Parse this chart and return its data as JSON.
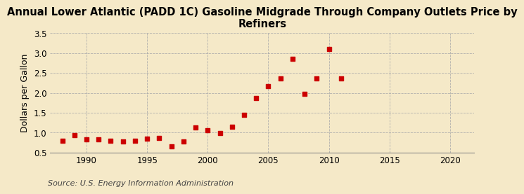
{
  "title": "Annual Lower Atlantic (PADD 1C) Gasoline Midgrade Through Company Outlets Price by\nRefiners",
  "ylabel": "Dollars per Gallon",
  "source": "Source: U.S. Energy Information Administration",
  "years": [
    1988,
    1989,
    1990,
    1991,
    1992,
    1993,
    1994,
    1995,
    1996,
    1997,
    1998,
    1999,
    2000,
    2001,
    2002,
    2003,
    2004,
    2005,
    2006,
    2007,
    2008,
    2009,
    2010,
    2011
  ],
  "values": [
    0.8,
    0.93,
    0.83,
    0.82,
    0.8,
    0.78,
    0.8,
    0.85,
    0.87,
    0.65,
    0.78,
    1.12,
    1.05,
    0.98,
    1.15,
    1.45,
    1.87,
    2.17,
    2.37,
    2.86,
    1.97,
    2.36,
    3.1,
    2.37
  ],
  "marker_color": "#cc0000",
  "marker_size": 18,
  "xlim": [
    1987,
    2022
  ],
  "ylim": [
    0.5,
    3.5
  ],
  "xticks": [
    1990,
    1995,
    2000,
    2005,
    2010,
    2015,
    2020
  ],
  "yticks": [
    0.5,
    1.0,
    1.5,
    2.0,
    2.5,
    3.0,
    3.5
  ],
  "background_color": "#f5e9c8",
  "plot_background_color": "#f5e9c8",
  "grid_color": "#aaaaaa",
  "title_fontsize": 10.5,
  "label_fontsize": 9,
  "tick_fontsize": 8.5,
  "source_fontsize": 8
}
